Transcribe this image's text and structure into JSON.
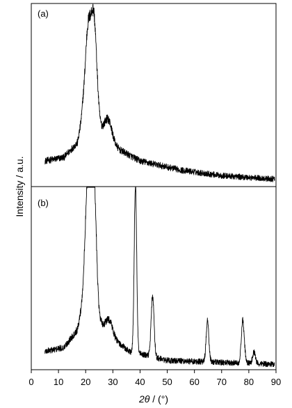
{
  "chart_data": {
    "type": "line",
    "xlabel_italic": "2θ",
    "xlabel_rest": " / (°)",
    "ylabel": "Intensity / a.u.",
    "xlim": [
      0,
      90
    ],
    "x_ticks": [
      "0",
      "10",
      "20",
      "30",
      "40",
      "50",
      "60",
      "70",
      "80",
      "90"
    ],
    "y_ticks_shown": false,
    "panels": [
      {
        "label": "(a)",
        "name": "",
        "baseline": 0.08,
        "noise": 0.025,
        "background": [
          {
            "x": 5,
            "y": 0.14
          },
          {
            "x": 12,
            "y": 0.16
          },
          {
            "x": 17,
            "y": 0.24
          },
          {
            "x": 19,
            "y": 0.4
          },
          {
            "x": 30,
            "y": 0.22
          },
          {
            "x": 40,
            "y": 0.14
          },
          {
            "x": 55,
            "y": 0.09
          },
          {
            "x": 70,
            "y": 0.06
          },
          {
            "x": 90,
            "y": 0.04
          }
        ],
        "peaks": [
          {
            "center": 20.8,
            "height": 0.44,
            "width": 1.0
          },
          {
            "center": 23.0,
            "height": 0.58,
            "width": 1.1
          },
          {
            "center": 28.3,
            "height": 0.12,
            "width": 1.5
          }
        ],
        "ylim": [
          0,
          1.0
        ]
      },
      {
        "label": "(b)",
        "name": "",
        "baseline": 0.06,
        "noise": 0.025,
        "background": [
          {
            "x": 5,
            "y": 0.1
          },
          {
            "x": 12,
            "y": 0.12
          },
          {
            "x": 17,
            "y": 0.22
          },
          {
            "x": 19,
            "y": 0.38
          },
          {
            "x": 30,
            "y": 0.17
          },
          {
            "x": 36,
            "y": 0.1
          },
          {
            "x": 50,
            "y": 0.05
          },
          {
            "x": 70,
            "y": 0.04
          },
          {
            "x": 90,
            "y": 0.03
          }
        ],
        "peaks": [
          {
            "center": 20.8,
            "height": 0.72,
            "width": 0.9
          },
          {
            "center": 23.0,
            "height": 0.75,
            "width": 0.9
          },
          {
            "center": 28.8,
            "height": 0.08,
            "width": 1.2
          },
          {
            "center": 38.3,
            "height": 0.93,
            "width": 0.45
          },
          {
            "center": 44.6,
            "height": 0.33,
            "width": 0.55
          },
          {
            "center": 64.8,
            "height": 0.22,
            "width": 0.5
          },
          {
            "center": 77.8,
            "height": 0.23,
            "width": 0.55
          },
          {
            "center": 81.9,
            "height": 0.06,
            "width": 0.5
          }
        ],
        "ylim": [
          0,
          1.0
        ]
      }
    ]
  }
}
